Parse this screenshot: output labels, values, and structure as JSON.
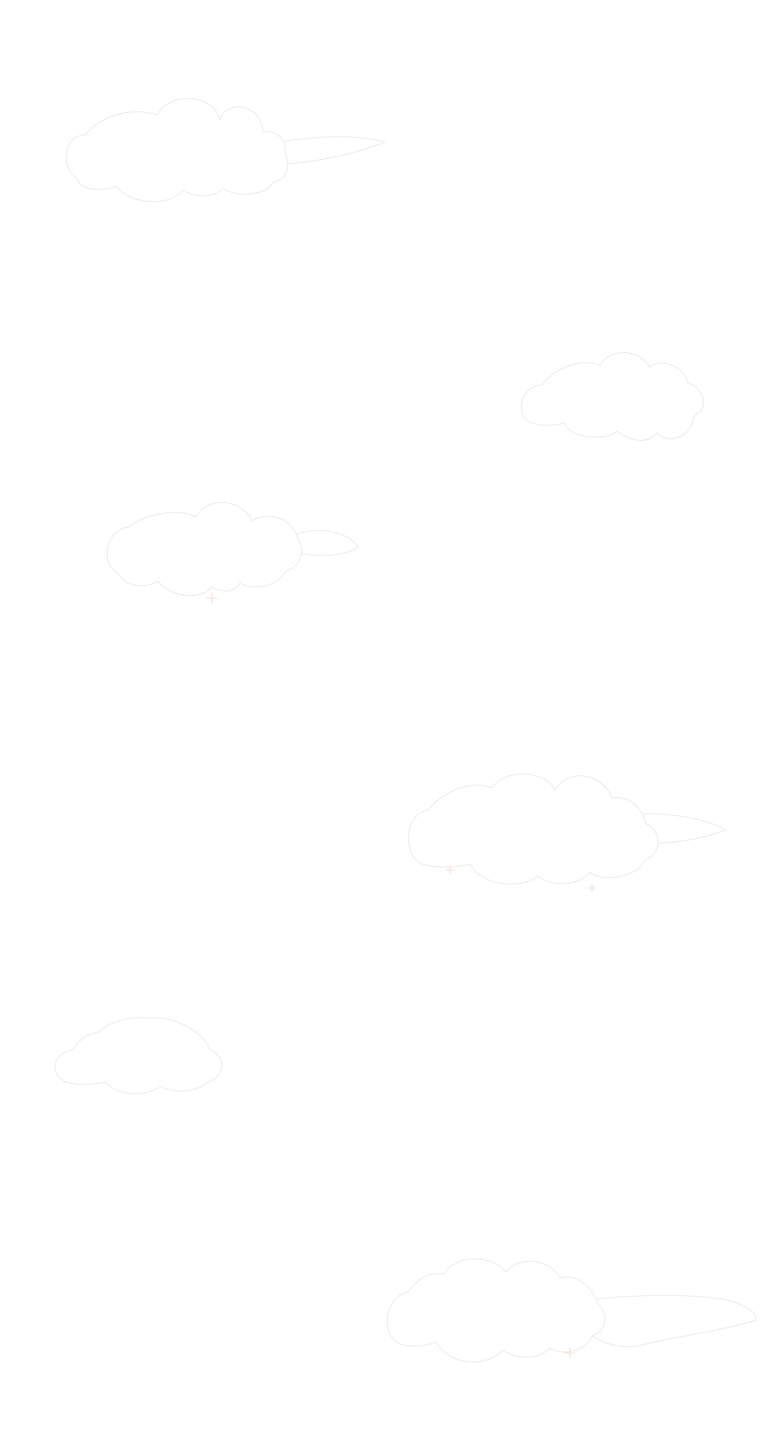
{
  "background": {
    "color": "#ffffff",
    "decoration": "cloud-icons",
    "cloud_stroke_color": "#f0ece7"
  }
}
